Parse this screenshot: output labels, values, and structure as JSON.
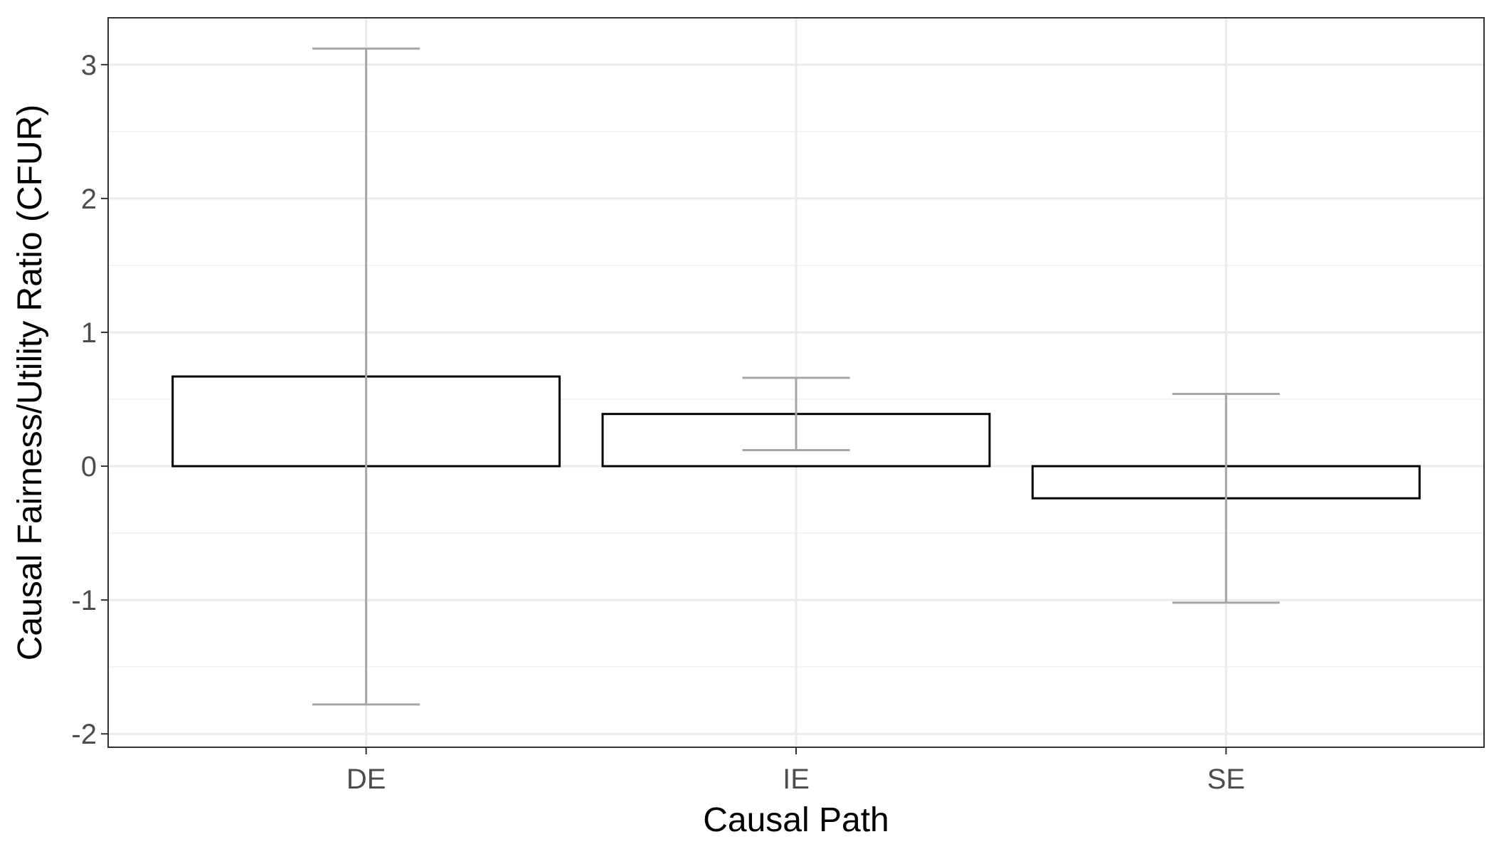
{
  "chart_data": {
    "type": "bar",
    "title": "",
    "xlabel": "Causal Path",
    "ylabel": "Causal Fairness/Utility Ratio (CFUR)",
    "categories": [
      "DE",
      "IE",
      "SE"
    ],
    "values": [
      0.67,
      0.39,
      -0.24
    ],
    "error_low": [
      -1.78,
      0.12,
      -1.02
    ],
    "error_high": [
      3.12,
      0.66,
      0.54
    ],
    "ylim": [
      -2.1,
      3.35
    ],
    "yticks": [
      -2,
      -1,
      0,
      1,
      2,
      3
    ],
    "ytick_labels": [
      "-2",
      "-1",
      "0",
      "1",
      "2",
      "3"
    ],
    "grid": true,
    "legend": "none",
    "colors": {
      "bar_fill": "#ffffff",
      "bar_stroke": "#000000",
      "errorbar": "#a6a6a6",
      "grid_major": "#ebebeb",
      "grid_minor": "#f3f3f3",
      "panel_border": "#333333"
    }
  }
}
